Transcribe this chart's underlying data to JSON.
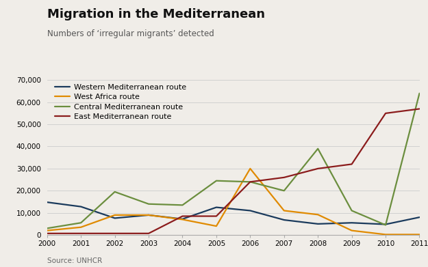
{
  "title": "Migration in the Mediterranean",
  "subtitle": "Numbers of ‘irregular migrants’ detected",
  "source": "Source: UNHCR",
  "years": [
    2000,
    2001,
    2002,
    2003,
    2004,
    2005,
    2006,
    2007,
    2008,
    2009,
    2010,
    2011
  ],
  "series": [
    {
      "label": "Western Mediterranean route",
      "color": "#1a3a5c",
      "values": [
        14800,
        12800,
        7600,
        9000,
        7200,
        12500,
        11000,
        6800,
        5000,
        5500,
        4800,
        8000
      ]
    },
    {
      "label": "West Africa route",
      "color": "#e08a00",
      "values": [
        2000,
        3500,
        9000,
        9000,
        7000,
        4000,
        30000,
        11000,
        9200,
        2000,
        200,
        200
      ]
    },
    {
      "label": "Central Mediterranean route",
      "color": "#6b8e3e",
      "values": [
        3000,
        5500,
        19500,
        14000,
        13500,
        24500,
        24000,
        20000,
        39000,
        11000,
        4500,
        64000
      ]
    },
    {
      "label": "East Mediterranean route",
      "color": "#8b1c1c",
      "values": [
        700,
        700,
        700,
        700,
        8500,
        8500,
        24000,
        26000,
        30000,
        32000,
        55000,
        57000
      ]
    }
  ],
  "ylim": [
    0,
    70000
  ],
  "yticks": [
    0,
    10000,
    20000,
    30000,
    40000,
    50000,
    60000,
    70000
  ],
  "background_color": "#f0ede8",
  "grid_color": "#cccccc",
  "title_fontsize": 13,
  "subtitle_fontsize": 8.5,
  "source_fontsize": 7.5,
  "legend_fontsize": 8,
  "tick_fontsize": 7.5,
  "linewidth": 1.6
}
